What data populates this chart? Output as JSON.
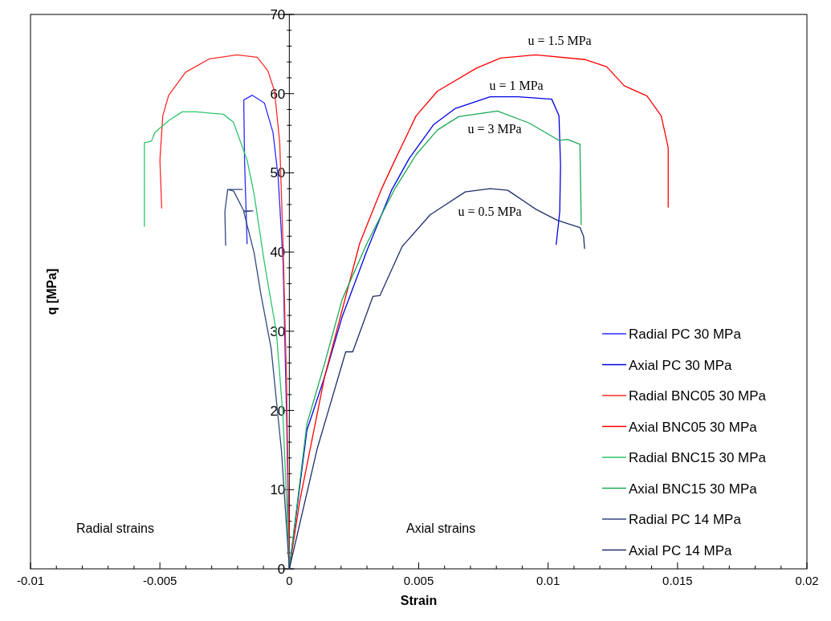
{
  "chart_data": {
    "type": "line",
    "xlabel": "Strain",
    "ylabel": "q [MPa]",
    "xlim": [
      -0.01,
      0.02
    ],
    "xticks": [
      -0.01,
      -0.005,
      0,
      0.005,
      0.01,
      0.015,
      0.02
    ],
    "ylim": [
      0,
      70
    ],
    "yticks": [
      0,
      10,
      20,
      30,
      40,
      50,
      60,
      70
    ],
    "grid": false,
    "legend": "bottom right",
    "marker": "none",
    "line_style": "solid",
    "annotations": [
      "u = 1.5 MPa",
      "u = 1 MPa",
      "u = 3 MPa",
      "u = 0.5 MPa",
      "Radial strains",
      "Axial strains"
    ],
    "series": [
      {
        "name": "Radial PC 30 MPa",
        "color": "#2b2bff",
        "x": [
          0,
          -0.000105,
          -0.00024,
          -0.00043,
          -0.00063,
          -0.00096,
          -0.00143,
          -0.00176,
          -0.00173,
          -0.00163
        ],
        "values": [
          0,
          19.1,
          38.6,
          49.4,
          55.1,
          58.8,
          59.8,
          59.2,
          51.6,
          41.0
        ]
      },
      {
        "name": "Axial PC 30 MPa",
        "color": "#0000e6",
        "x": [
          0,
          0.00068,
          0.00136,
          0.00204,
          0.003,
          0.00395,
          0.00463,
          0.00558,
          0.0064,
          0.00776,
          0.00884,
          0.01014,
          0.01042,
          0.01048,
          0.01045,
          0.01031
        ],
        "values": [
          0,
          17.5,
          24.2,
          31.8,
          40.2,
          47.8,
          51.8,
          56.1,
          58.1,
          59.6,
          59.6,
          59.3,
          57.2,
          51.0,
          45.1,
          40.9
        ]
      },
      {
        "name": "Radial BNC05 30 MPa",
        "color": "#ff2a2a",
        "x": [
          0,
          -0.000105,
          -0.00024,
          -0.00037,
          -0.00057,
          -0.00083,
          -0.00124,
          -0.00202,
          -0.00308,
          -0.00401,
          -0.00466,
          -0.00489,
          -0.005,
          -0.00493
        ],
        "values": [
          0,
          23.4,
          40.8,
          53.8,
          60.3,
          62.9,
          64.6,
          64.9,
          64.4,
          62.7,
          59.8,
          57.2,
          51.6,
          45.5
        ]
      },
      {
        "name": "Axial BNC05 30 MPa",
        "color": "#ff0000",
        "x": [
          0,
          0.0004,
          0.00136,
          0.00272,
          0.00354,
          0.00408,
          0.0049,
          0.00572,
          0.00722,
          0.00816,
          0.00952,
          0.01144,
          0.01226,
          0.01294,
          0.01382,
          0.01437,
          0.01464,
          0.01464
        ],
        "values": [
          0,
          8.5,
          24.2,
          41.1,
          47.8,
          51.6,
          57.2,
          60.3,
          63.2,
          64.5,
          64.9,
          64.3,
          63.4,
          61.0,
          59.7,
          57.2,
          53.2,
          45.6
        ]
      },
      {
        "name": "Radial BNC15 30 MPa",
        "color": "#2ec46a",
        "x": [
          0,
          -0.00024,
          -0.0005,
          -0.00096,
          -0.00136,
          -0.00163,
          -0.00216,
          -0.00255,
          -0.00361,
          -0.00414,
          -0.00466,
          -0.00519,
          -0.00533,
          -0.0056,
          -0.0056
        ],
        "values": [
          0,
          19.1,
          29.9,
          38.6,
          47.3,
          51.6,
          56.4,
          57.4,
          57.7,
          57.7,
          56.6,
          55.1,
          54.0,
          53.8,
          43.2
        ]
      },
      {
        "name": "Axial BNC15 30 MPa",
        "color": "#1aaa55",
        "x": [
          0,
          0.00068,
          0.00136,
          0.00204,
          0.003,
          0.00408,
          0.0049,
          0.00572,
          0.00654,
          0.00804,
          0.00926,
          0.01042,
          0.01076,
          0.01123,
          0.01128
        ],
        "values": [
          0,
          18.3,
          25.9,
          34.0,
          41.1,
          48.0,
          52.3,
          55.4,
          57.1,
          57.8,
          56.3,
          54.1,
          54.2,
          53.6,
          43.4
        ]
      },
      {
        "name": "Radial PC 14 MPa",
        "color": "#34487f",
        "x": [
          0,
          -0.0003,
          -0.0007,
          -0.0011,
          -0.00136,
          -0.00176,
          -0.0014,
          -0.00176,
          -0.00215,
          -0.00238,
          -0.00182,
          -0.00238,
          -0.00249,
          -0.00246
        ],
        "values": [
          0,
          14.8,
          27.8,
          34.7,
          39.9,
          45.1,
          45.2,
          45.2,
          47.7,
          47.9,
          47.9,
          47.9,
          45.1,
          40.8
        ]
      },
      {
        "name": "Axial PC 14 MPa",
        "color": "#1f2f6b",
        "x": [
          0,
          0.00108,
          0.00218,
          0.00245,
          0.00323,
          0.0035,
          0.00436,
          0.00544,
          0.0068,
          0.00776,
          0.00844,
          0.00953,
          0.01036,
          0.01123,
          0.01137,
          0.01141
        ],
        "values": [
          0,
          15.2,
          27.4,
          27.4,
          34.4,
          34.5,
          40.7,
          44.7,
          47.6,
          48.0,
          47.8,
          45.4,
          44.0,
          43.1,
          42.0,
          40.4
        ]
      }
    ]
  }
}
